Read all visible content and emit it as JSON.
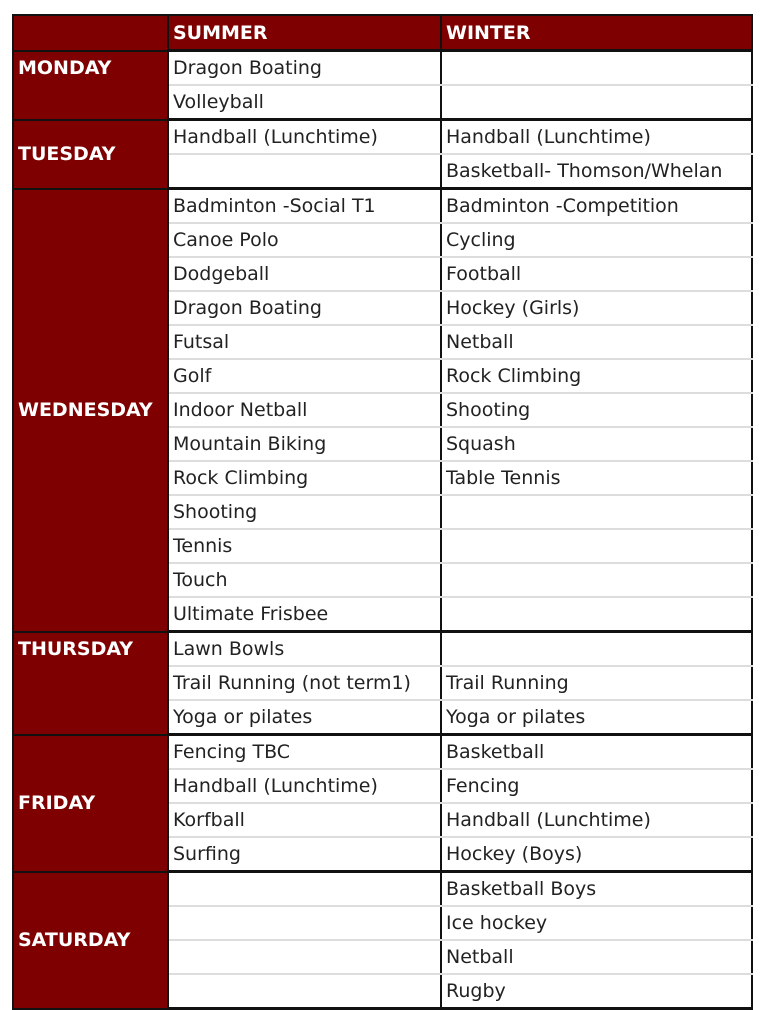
{
  "header": {
    "day": "",
    "summer": "SUMMER",
    "winter": "WINTER"
  },
  "colors": {
    "header_bg": "#7f0000",
    "header_text": "#ffffff"
  },
  "days": [
    {
      "name": "MONDAY",
      "align": "top",
      "summer": [
        "Dragon Boating",
        "Volleyball"
      ],
      "winter": [
        "",
        ""
      ]
    },
    {
      "name": "TUESDAY",
      "align": "middle",
      "summer": [
        "Handball (Lunchtime)",
        ""
      ],
      "winter": [
        "Handball (Lunchtime)",
        "Basketball- Thomson/Whelan"
      ]
    },
    {
      "name": "WEDNESDAY",
      "align": "center",
      "summer": [
        "Badminton -Social T1",
        "Canoe Polo",
        "Dodgeball",
        "Dragon Boating",
        "Futsal",
        "Golf",
        "Indoor Netball",
        "Mountain Biking",
        "Rock Climbing",
        "Shooting",
        "Tennis",
        "Touch",
        "Ultimate Frisbee"
      ],
      "winter": [
        "Badminton -Competition",
        "Cycling",
        "Football",
        "Hockey (Girls)",
        "Netball",
        "Rock Climbing",
        "Shooting",
        "Squash",
        "Table Tennis",
        "",
        "",
        "",
        ""
      ]
    },
    {
      "name": "THURSDAY",
      "align": "top",
      "summer": [
        "Lawn Bowls",
        "Trail Running (not term1)",
        "Yoga or pilates"
      ],
      "winter": [
        "",
        "Trail Running",
        "Yoga  or pilates"
      ]
    },
    {
      "name": "FRIDAY",
      "align": "middle",
      "summer": [
        "Fencing TBC",
        "Handball (Lunchtime)",
        "Korfball",
        "Surfing"
      ],
      "winter": [
        "Basketball",
        "Fencing",
        "Handball (Lunchtime)",
        "Hockey (Boys)"
      ]
    },
    {
      "name": "SATURDAY",
      "align": "middle",
      "summer": [
        "",
        "",
        "",
        ""
      ],
      "winter": [
        "Basketball Boys",
        "Ice hockey",
        "Netball",
        "Rugby"
      ]
    }
  ]
}
